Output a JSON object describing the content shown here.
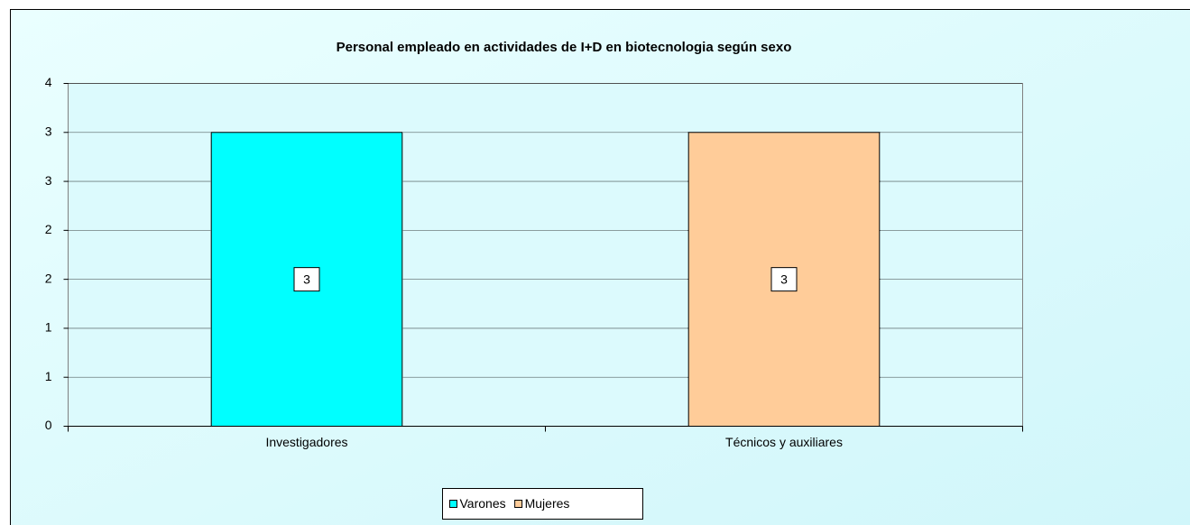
{
  "chart_data": {
    "type": "bar",
    "title": "Personal empleado en actividades de I+D en biotecnologia según sexo",
    "categories": [
      "Investigadores",
      "Técnicos y auxiliares"
    ],
    "series": [
      {
        "name": "Varones",
        "color": "#00ffff",
        "values": [
          3,
          null
        ]
      },
      {
        "name": "Mujeres",
        "color": "#ffcc99",
        "values": [
          null,
          3
        ]
      }
    ],
    "ylim": [
      0,
      3.5
    ],
    "yticks": [
      0,
      {
        "value": 0.5,
        "label": "1"
      },
      1,
      {
        "value": 1.5,
        "label": "2"
      },
      2,
      {
        "value": 2.5,
        "label": "3"
      },
      3,
      {
        "value": 3.5,
        "label": "4"
      }
    ],
    "grid": true,
    "legend": "bottom"
  }
}
